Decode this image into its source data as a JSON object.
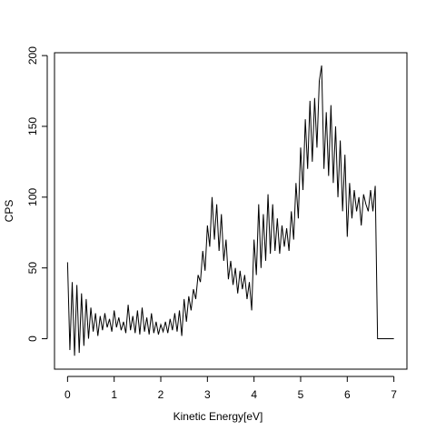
{
  "chart_data": {
    "type": "line",
    "xlabel": "Kinetic Energy[eV]",
    "ylabel": "CPS",
    "x": [
      0,
      0.05,
      0.1,
      0.15,
      0.2,
      0.25,
      0.3,
      0.35,
      0.4,
      0.45,
      0.5,
      0.55,
      0.6,
      0.65,
      0.7,
      0.75,
      0.8,
      0.85,
      0.9,
      0.95,
      1,
      1.05,
      1.1,
      1.15,
      1.2,
      1.25,
      1.3,
      1.35,
      1.4,
      1.45,
      1.5,
      1.55,
      1.6,
      1.65,
      1.7,
      1.75,
      1.8,
      1.85,
      1.9,
      1.95,
      2,
      2.05,
      2.1,
      2.15,
      2.2,
      2.25,
      2.3,
      2.35,
      2.4,
      2.45,
      2.5,
      2.55,
      2.6,
      2.65,
      2.7,
      2.75,
      2.8,
      2.85,
      2.9,
      2.95,
      3,
      3.05,
      3.1,
      3.15,
      3.2,
      3.25,
      3.3,
      3.35,
      3.4,
      3.45,
      3.5,
      3.55,
      3.6,
      3.65,
      3.7,
      3.75,
      3.8,
      3.85,
      3.9,
      3.95,
      4,
      4.05,
      4.1,
      4.15,
      4.2,
      4.25,
      4.3,
      4.35,
      4.4,
      4.45,
      4.5,
      4.55,
      4.6,
      4.65,
      4.7,
      4.75,
      4.8,
      4.85,
      4.9,
      4.95,
      5,
      5.05,
      5.1,
      5.15,
      5.2,
      5.25,
      5.3,
      5.35,
      5.4,
      5.45,
      5.5,
      5.55,
      5.6,
      5.65,
      5.7,
      5.75,
      5.8,
      5.85,
      5.9,
      5.95,
      6,
      6.05,
      6.1,
      6.15,
      6.2,
      6.25,
      6.3,
      6.35,
      6.4,
      6.45,
      6.5,
      6.55,
      6.6,
      6.65,
      6.7,
      6.75,
      6.8,
      6.85,
      6.9,
      6.95,
      7
    ],
    "series": [
      {
        "name": "CPS",
        "color": "#000000",
        "values": [
          54,
          -8,
          40,
          -12,
          38,
          -10,
          32,
          -5,
          28,
          0,
          22,
          5,
          18,
          2,
          16,
          6,
          18,
          8,
          14,
          5,
          20,
          8,
          15,
          6,
          12,
          4,
          24,
          6,
          16,
          4,
          20,
          3,
          22,
          5,
          15,
          3,
          18,
          4,
          12,
          3,
          10,
          5,
          12,
          4,
          14,
          6,
          18,
          5,
          20,
          2,
          28,
          12,
          30,
          20,
          35,
          28,
          45,
          40,
          62,
          48,
          80,
          65,
          100,
          70,
          95,
          62,
          88,
          55,
          70,
          42,
          55,
          38,
          50,
          32,
          48,
          35,
          45,
          28,
          40,
          20,
          70,
          45,
          95,
          50,
          88,
          55,
          102,
          60,
          95,
          62,
          85,
          60,
          80,
          65,
          78,
          62,
          90,
          70,
          110,
          85,
          135,
          105,
          155,
          120,
          168,
          125,
          170,
          135,
          182,
          193,
          120,
          160,
          115,
          165,
          110,
          150,
          100,
          140,
          90,
          130,
          72,
          110,
          85,
          105,
          90,
          100,
          80,
          102,
          95,
          90,
          105,
          90,
          108,
          0,
          0,
          0,
          0,
          0,
          0,
          0,
          0
        ]
      }
    ],
    "xlim": [
      -0.28,
      7.28
    ],
    "ylim": [
      -21.5,
      202
    ],
    "xticks": [
      0,
      1,
      2,
      3,
      4,
      5,
      6,
      7
    ],
    "yticks": [
      0,
      50,
      100,
      150,
      200
    ]
  }
}
